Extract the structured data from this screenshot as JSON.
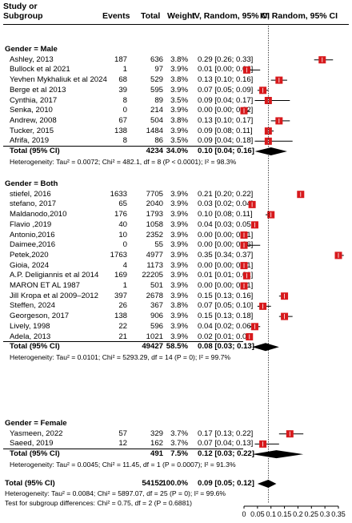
{
  "header": {
    "col_study": "Study or\nSubgroup",
    "col_events": "Events",
    "col_total": "Total",
    "col_weight": "Weight",
    "col_ci": "IV, Random, 95% CI",
    "col_plot": "IV, Random, 95% CI"
  },
  "chart_data": {
    "type": "forest",
    "xlim": [
      0,
      0.35
    ],
    "xticks": [
      "0",
      "0.05",
      "0.1",
      "0.15",
      "0.2",
      "0.25",
      "0.3",
      "0.35"
    ],
    "xtick_values": [
      0,
      0.05,
      0.1,
      0.15,
      0.2,
      0.25,
      0.3,
      0.35
    ],
    "overall_line": 0.09,
    "groups": [
      {
        "label": "Gender = Male",
        "studies": [
          {
            "name": "Ashley, 2013",
            "events": "187",
            "total": "636",
            "weight": "3.8%",
            "ci": "0.29 [0.26; 0.33]",
            "est": 0.29,
            "lo": 0.26,
            "hi": 0.33
          },
          {
            "name": "Bullock et al 2021",
            "events": "1",
            "total": "97",
            "weight": "3.9%",
            "ci": "0.01 [0.00; 0.06]",
            "est": 0.01,
            "lo": 0.0,
            "hi": 0.06
          },
          {
            "name": "Yevhen Mykhaliuk et al 2024",
            "events": "68",
            "total": "529",
            "weight": "3.8%",
            "ci": "0.13 [0.10; 0.16]",
            "est": 0.13,
            "lo": 0.1,
            "hi": 0.16
          },
          {
            "name": "Berge et al 2013",
            "events": "39",
            "total": "595",
            "weight": "3.9%",
            "ci": "0.07 [0.05; 0.09]",
            "est": 0.07,
            "lo": 0.05,
            "hi": 0.09
          },
          {
            "name": "Cynthia, 2017",
            "events": "8",
            "total": "89",
            "weight": "3.5%",
            "ci": "0.09 [0.04; 0.17]",
            "est": 0.09,
            "lo": 0.04,
            "hi": 0.17
          },
          {
            "name": "Senka, 2010",
            "events": "0",
            "total": "214",
            "weight": "3.9%",
            "ci": "0.00 [0.00; 0.02]",
            "est": 0.0,
            "lo": 0.0,
            "hi": 0.02
          },
          {
            "name": "Andrew, 2008",
            "events": "67",
            "total": "504",
            "weight": "3.8%",
            "ci": "0.13 [0.10; 0.17]",
            "est": 0.13,
            "lo": 0.1,
            "hi": 0.17
          },
          {
            "name": "Tucker, 2015",
            "events": "138",
            "total": "1484",
            "weight": "3.9%",
            "ci": "0.09 [0.08; 0.11]",
            "est": 0.09,
            "lo": 0.08,
            "hi": 0.11
          },
          {
            "name": "Afrifa, 2019",
            "events": "8",
            "total": "86",
            "weight": "3.5%",
            "ci": "0.09 [0.04; 0.18]",
            "est": 0.09,
            "lo": 0.04,
            "hi": 0.18
          }
        ],
        "total_label": "Total (95% CI)",
        "total_n": "4234",
        "total_weight": "34.0%",
        "total_ci": "0.10 [0.04; 0.16]",
        "total_est": 0.1,
        "total_lo": 0.04,
        "total_hi": 0.16,
        "heterogeneity": "Heterogeneity: Tau² = 0.0072; Chi² = 482.1, df = 8 (P < 0.0001); I² = 98.3%"
      },
      {
        "label": "Gender = Both",
        "studies": [
          {
            "name": "stiefel, 2016",
            "events": "1633",
            "total": "7705",
            "weight": "3.9%",
            "ci": "0.21 [0.20; 0.22]",
            "est": 0.21,
            "lo": 0.2,
            "hi": 0.22
          },
          {
            "name": "stefano, 2017",
            "events": "65",
            "total": "2040",
            "weight": "3.9%",
            "ci": "0.03 [0.02; 0.04]",
            "est": 0.03,
            "lo": 0.02,
            "hi": 0.04
          },
          {
            "name": "Maldanodo,2010",
            "events": "176",
            "total": "1793",
            "weight": "3.9%",
            "ci": "0.10 [0.08; 0.11]",
            "est": 0.1,
            "lo": 0.08,
            "hi": 0.11
          },
          {
            "name": "Flavio ,2019",
            "events": "40",
            "total": "1058",
            "weight": "3.9%",
            "ci": "0.04 [0.03; 0.05]",
            "est": 0.04,
            "lo": 0.03,
            "hi": 0.05
          },
          {
            "name": "Antonio,2016",
            "events": "10",
            "total": "2352",
            "weight": "3.9%",
            "ci": "0.00 [0.00; 0.01]",
            "est": 0.0,
            "lo": 0.0,
            "hi": 0.01
          },
          {
            "name": "Daimee,2016",
            "events": "0",
            "total": "55",
            "weight": "3.9%",
            "ci": "0.00 [0.00; 0.06]",
            "est": 0.0,
            "lo": 0.0,
            "hi": 0.06
          },
          {
            "name": "Petek,2020",
            "events": "1763",
            "total": "4977",
            "weight": "3.9%",
            "ci": "0.35 [0.34; 0.37]",
            "est": 0.35,
            "lo": 0.34,
            "hi": 0.37
          },
          {
            "name": "Gioia, 2024",
            "events": "4",
            "total": "1173",
            "weight": "3.9%",
            "ci": "0.00 [0.00; 0.01]",
            "est": 0.0,
            "lo": 0.0,
            "hi": 0.01
          },
          {
            "name": "A.P. Deligiannis et al 2014",
            "events": "169",
            "total": "22205",
            "weight": "3.9%",
            "ci": "0.01 [0.01; 0.01]",
            "est": 0.01,
            "lo": 0.01,
            "hi": 0.01
          },
          {
            "name": "MARON ET AL 1987",
            "events": "1",
            "total": "501",
            "weight": "3.9%",
            "ci": "0.00 [0.00; 0.01]",
            "est": 0.0,
            "lo": 0.0,
            "hi": 0.01
          },
          {
            "name": "Jill Kropa et al 2009–2012",
            "events": "397",
            "total": "2678",
            "weight": "3.9%",
            "ci": "0.15 [0.13; 0.16]",
            "est": 0.15,
            "lo": 0.13,
            "hi": 0.16
          },
          {
            "name": "Steffen, 2024",
            "events": "26",
            "total": "367",
            "weight": "3.8%",
            "ci": "0.07 [0.05; 0.10]",
            "est": 0.07,
            "lo": 0.05,
            "hi": 0.1
          },
          {
            "name": "Georgeson, 2017",
            "events": "138",
            "total": "906",
            "weight": "3.9%",
            "ci": "0.15 [0.13; 0.18]",
            "est": 0.15,
            "lo": 0.13,
            "hi": 0.18
          },
          {
            "name": "Lively, 1998",
            "events": "22",
            "total": "596",
            "weight": "3.9%",
            "ci": "0.04 [0.02; 0.06]",
            "est": 0.04,
            "lo": 0.02,
            "hi": 0.06
          },
          {
            "name": "Adela, 2013",
            "events": "21",
            "total": "1021",
            "weight": "3.9%",
            "ci": "0.02 [0.01; 0.03]",
            "est": 0.02,
            "lo": 0.01,
            "hi": 0.03
          }
        ],
        "total_label": "Total (95% CI)",
        "total_n": "49427",
        "total_weight": "58.5%",
        "total_ci": "0.08 [0.03; 0.13]",
        "total_est": 0.08,
        "total_lo": 0.03,
        "total_hi": 0.13,
        "heterogeneity": "Heterogeneity: Tau² = 0.0101; Chi² = 5293.29, df = 14 (P = 0); I² = 99.7%"
      },
      {
        "label": "Gender = Female",
        "studies": [
          {
            "name": "Yasmeen, 2022",
            "events": "57",
            "total": "329",
            "weight": "3.7%",
            "ci": "0.17 [0.13; 0.22]",
            "est": 0.17,
            "lo": 0.13,
            "hi": 0.22
          },
          {
            "name": "Saeed, 2019",
            "events": "12",
            "total": "162",
            "weight": "3.7%",
            "ci": "0.07 [0.04; 0.13]",
            "est": 0.07,
            "lo": 0.04,
            "hi": 0.13
          }
        ],
        "total_label": "Total (95% CI)",
        "total_n": "491",
        "total_weight": "7.5%",
        "total_ci": "0.12 [0.03; 0.22]",
        "total_est": 0.12,
        "total_lo": 0.03,
        "total_hi": 0.22,
        "heterogeneity": "Heterogeneity: Tau² = 0.0045; Chi² = 11.45, df = 1 (P = 0.0007); I² = 91.3%"
      }
    ],
    "overall": {
      "label": "Total (95% CI)",
      "total_n": "54152",
      "weight": "100.0%",
      "ci": "0.09 [0.05; 0.12]",
      "est": 0.09,
      "lo": 0.05,
      "hi": 0.12,
      "heterogeneity": "Heterogeneity: Tau² = 0.0084; Chi² = 5897.07, df = 25 (P = 0); I² = 99.6%",
      "subgroup_test": "Test for subgroup differences: Chi² = 0.75, df = 2 (P = 0.6881)"
    },
    "colors": {
      "square": "#d7191c",
      "line": "#000000",
      "diamond": "#000000"
    }
  }
}
